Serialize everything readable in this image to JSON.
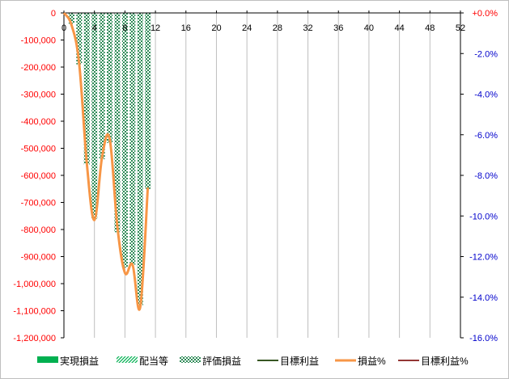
{
  "chart_data": {
    "type": "bar",
    "x_axis": {
      "range": [
        0,
        52
      ],
      "ticks": [
        0,
        4,
        8,
        12,
        16,
        20,
        24,
        28,
        32,
        36,
        40,
        44,
        48,
        52
      ],
      "tick_labels": [
        "0",
        "4",
        "8",
        "12",
        "16",
        "20",
        "24",
        "28",
        "32",
        "36",
        "40",
        "44",
        "48",
        "52"
      ]
    },
    "y_axis_left": {
      "range": [
        -1200000,
        0
      ],
      "ticks": [
        0,
        -100000,
        -200000,
        -300000,
        -400000,
        -500000,
        -600000,
        -700000,
        -800000,
        -900000,
        -1000000,
        -1100000,
        -1200000
      ],
      "tick_labels": [
        "0",
        "-100,000",
        "-200,000",
        "-300,000",
        "-400,000",
        "-500,000",
        "-600,000",
        "-700,000",
        "-800,000",
        "-900,000",
        "-1,000,000",
        "-1,100,000",
        "-1,200,000"
      ],
      "color": "#ff0000"
    },
    "y_axis_right": {
      "range": [
        -16,
        0
      ],
      "ticks": [
        0,
        -2,
        -4,
        -6,
        -8,
        -10,
        -12,
        -14,
        -16
      ],
      "tick_labels": [
        "+0.0%",
        "-2.0%",
        "-4.0%",
        "-6.0%",
        "-8.0%",
        "-10.0%",
        "-12.0%",
        "-14.0%",
        "-16.0%"
      ],
      "label_colors": [
        "#ff0000",
        "#0000cc",
        "#0000cc",
        "#0000cc",
        "#0000cc",
        "#0000cc",
        "#0000cc",
        "#0000cc",
        "#0000cc"
      ]
    },
    "grid": "vertical",
    "legend_position": "bottom",
    "series": [
      {
        "name": "実現損益",
        "kind": "bar",
        "axis": "left",
        "color": "#00b050",
        "pattern": "solid",
        "values": []
      },
      {
        "name": "配当等",
        "kind": "bar",
        "axis": "left",
        "color": "#00b050",
        "pattern": "diagonal",
        "values": []
      },
      {
        "name": "評価損益",
        "kind": "bar",
        "axis": "left",
        "color": "#2e8b57",
        "pattern": "checker",
        "x": [
          1,
          2,
          3,
          4,
          5,
          6,
          7,
          8,
          9,
          10,
          11
        ],
        "values": [
          -40000,
          -190000,
          -560000,
          -760000,
          -540000,
          -480000,
          -810000,
          -940000,
          -930000,
          -1080000,
          -650000
        ]
      },
      {
        "name": "目標利益",
        "kind": "line",
        "axis": "left",
        "color": "#375623",
        "x": [],
        "values": []
      },
      {
        "name": "損益%",
        "kind": "line",
        "axis": "right",
        "color": "#f79646",
        "smooth": true,
        "x": [
          0,
          1,
          2,
          3,
          4,
          5,
          6,
          7,
          8,
          9,
          10,
          11
        ],
        "values": [
          0,
          -0.6,
          -2.5,
          -7.4,
          -10.2,
          -7.1,
          -6.2,
          -10.5,
          -12.8,
          -12.4,
          -14.5,
          -8.6
        ]
      },
      {
        "name": "目標利益%",
        "kind": "line",
        "axis": "right",
        "color": "#943634",
        "x": [],
        "values": []
      }
    ]
  }
}
